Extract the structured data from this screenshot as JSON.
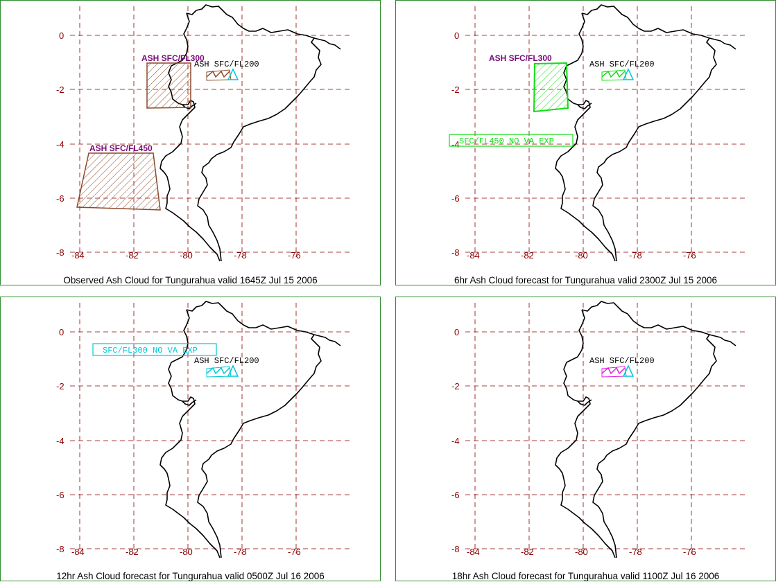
{
  "colors": {
    "border": "#2e8b2e",
    "grid": "#8b0000",
    "coast": "#000000",
    "brown": "#8b4a2a",
    "purple": "#7a0a7a",
    "cyan": "#00c8d8",
    "green": "#11dd11",
    "magenta": "#e020e0"
  },
  "axes": {
    "lat_ticks": [
      "0",
      "-2",
      "-4",
      "-6",
      "-8"
    ],
    "lon_ticks": [
      "-84",
      "-82",
      "-80",
      "-78",
      "-76"
    ]
  },
  "panels": [
    {
      "caption": "Observed Ash Cloud for Tungurahua valid 1645Z Jul 15 2006",
      "labels": {
        "fl300": "ASH SFC/FL300",
        "fl200": "ASH SFC/FL200",
        "fl450": "ASH SFC/FL450"
      }
    },
    {
      "caption": "6hr Ash Cloud forecast for Tungurahua valid 2300Z Jul 15 2006",
      "labels": {
        "fl300": "ASH SFC/FL300",
        "fl200": "ASH SFC/FL200",
        "box": "SFC/FL450 NO VA EXP"
      }
    },
    {
      "caption": "12hr Ash Cloud forecast for Tungurahua valid 0500Z Jul 16 2006",
      "labels": {
        "box": "SFC/FL300 NO VA EXP",
        "fl200": "ASH SFC/FL200"
      }
    },
    {
      "caption": "18hr Ash Cloud forecast for Tungurahua valid 1100Z Jul 16 2006",
      "labels": {
        "fl200": "ASH SFC/FL200"
      }
    }
  ]
}
